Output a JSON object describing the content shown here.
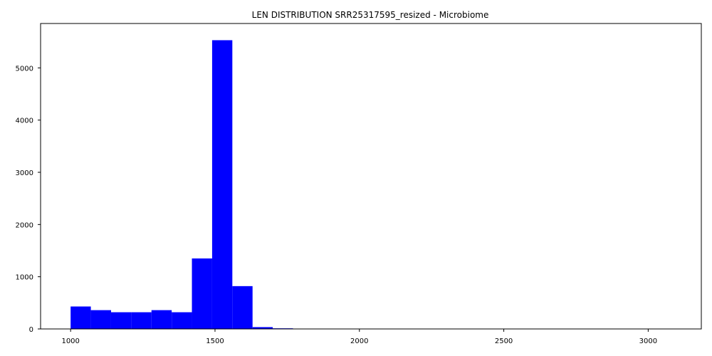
{
  "chart_data": {
    "type": "bar",
    "title": "LEN DISTRIBUTION SRR25317595_resized - Microbiome",
    "xlabel": "",
    "ylabel": "",
    "xlim": [
      896,
      3184
    ],
    "ylim": [
      0,
      5850
    ],
    "grid": false,
    "bar_color": "#0000ff",
    "bin_edges": [
      1000,
      1070,
      1140,
      1210,
      1280,
      1350,
      1420,
      1490,
      1560,
      1630,
      1700,
      1770,
      1840,
      1910,
      1980,
      2050,
      2120,
      2190,
      2260,
      2330,
      2400,
      2470,
      2540,
      2610,
      2680,
      2750,
      2820,
      2890,
      2960,
      3030,
      3100
    ],
    "values": [
      430,
      360,
      320,
      320,
      360,
      320,
      1350,
      5530,
      820,
      35,
      12,
      3,
      1,
      0,
      0,
      0,
      0,
      0,
      0,
      0,
      0,
      0,
      0,
      0,
      0,
      0,
      0,
      0,
      0,
      1
    ],
    "x_ticks": [
      1000,
      1500,
      2000,
      2500,
      3000
    ],
    "x_tick_labels": [
      "1000",
      "1500",
      "2000",
      "2500",
      "3000"
    ],
    "y_ticks": [
      0,
      1000,
      2000,
      3000,
      4000,
      5000
    ],
    "y_tick_labels": [
      "0",
      "1000",
      "2000",
      "3000",
      "4000",
      "5000"
    ]
  }
}
